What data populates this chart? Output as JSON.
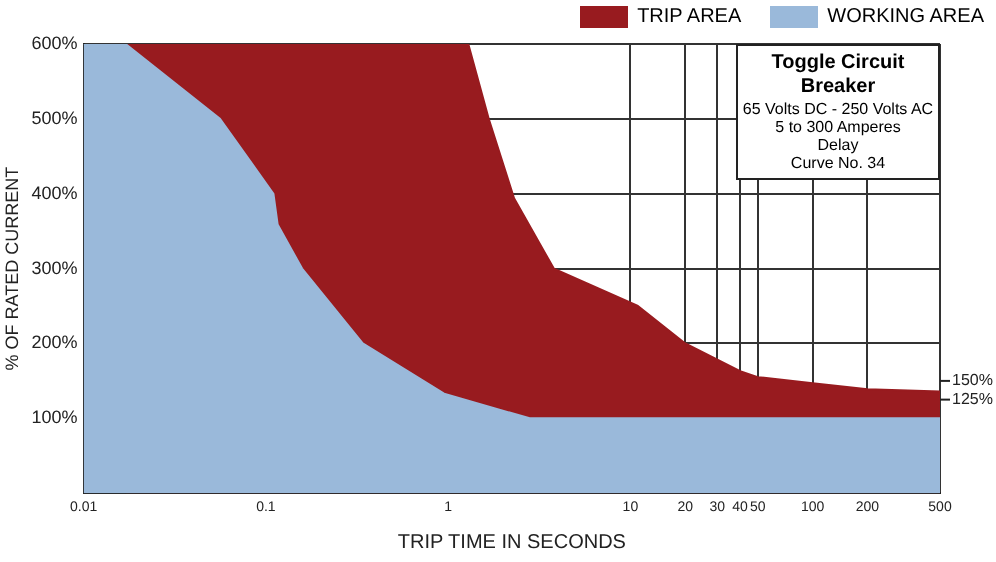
{
  "chart_data": {
    "type": "area",
    "title": "Toggle Circuit Breaker",
    "subtitle": "65 Volts DC - 250 Volts AC",
    "xlabel": "TRIP TIME IN SECONDS",
    "ylabel": "% OF RATED CURRENT",
    "annotations": [
      "5 to 300 Amperes",
      "Delay",
      "Curve No. 34",
      {
        "text": "150%",
        "x": 500,
        "y": 150
      },
      {
        "text": "125%",
        "x": 500,
        "y": 125
      }
    ],
    "log": "x",
    "xlim": [
      0.01,
      500
    ],
    "xticks": [
      0.01,
      0.1,
      1,
      10,
      20,
      30,
      40,
      50,
      100,
      200,
      500
    ],
    "ylim": [
      0,
      600
    ],
    "yticks": [
      {
        "value": 100,
        "label": "100%"
      },
      {
        "value": 200,
        "label": "200%"
      },
      {
        "value": 300,
        "label": "300%"
      },
      {
        "value": 400,
        "label": "400%"
      },
      {
        "value": 500,
        "label": "500%"
      },
      {
        "value": 600,
        "label": "600%"
      }
    ],
    "grid": true,
    "legend": "top right",
    "series": [
      {
        "name": "TRIP AREA",
        "color": "#981b1f",
        "x": [
          0.017,
          1.29,
          1.67,
          2.3,
          3.8,
          11,
          20,
          40,
          50,
          100,
          200,
          500
        ],
        "values": [
          600,
          600,
          500,
          394,
          300,
          250,
          200,
          163,
          155,
          147,
          139,
          136
        ]
      },
      {
        "name": "WORKING AREA",
        "color": "#9ab9da",
        "x": [
          0.01,
          0.017,
          0.056,
          0.11,
          0.116,
          0.158,
          0.34,
          0.95,
          2.8,
          500
        ],
        "values": [
          600,
          600,
          500,
          400,
          359,
          300,
          200,
          133,
          100,
          100
        ]
      }
    ]
  }
}
